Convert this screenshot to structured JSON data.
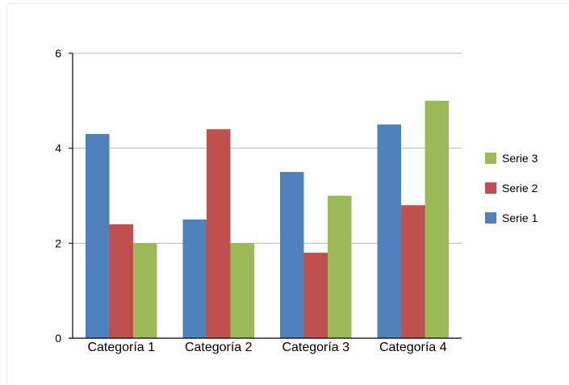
{
  "chart_data": {
    "type": "bar",
    "title": "",
    "xlabel": "",
    "ylabel": "",
    "categories": [
      "Categoría 1",
      "Categoría 2",
      "Categoría 3",
      "Categoría 4"
    ],
    "series": [
      {
        "name": "Serie 1",
        "color": "#4f81bd",
        "values": [
          4.3,
          2.5,
          3.5,
          4.5
        ]
      },
      {
        "name": "Serie 2",
        "color": "#c0504d",
        "values": [
          2.4,
          4.4,
          1.8,
          2.8
        ]
      },
      {
        "name": "Serie 3",
        "color": "#9bbb59",
        "values": [
          2.0,
          2.0,
          3.0,
          5.0
        ]
      }
    ],
    "ylim": [
      0,
      6
    ],
    "yticks": [
      "0",
      "2",
      "4",
      "6"
    ],
    "grid": true,
    "legend": {
      "placement": "right",
      "order": [
        "Serie 3",
        "Serie 2",
        "Serie 1"
      ]
    }
  }
}
